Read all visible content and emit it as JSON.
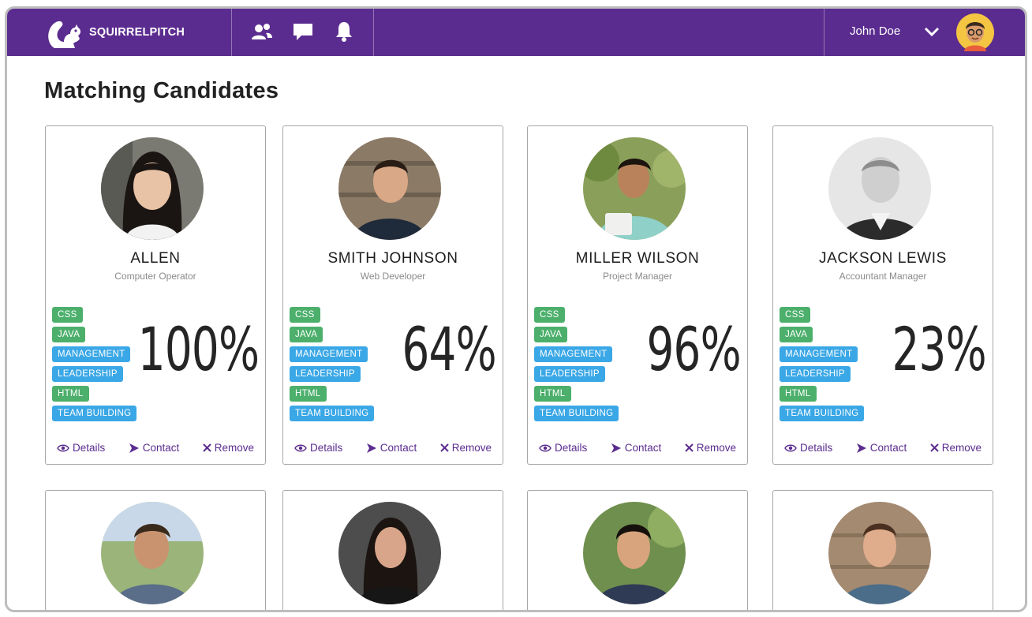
{
  "app": {
    "brand": "SQUIRRELPITCH"
  },
  "header": {
    "user_name": "John Doe"
  },
  "page": {
    "title": "Matching Candidates"
  },
  "actions": {
    "details": "Details",
    "contact": "Contact",
    "remove": "Remove"
  },
  "colors": {
    "brand": "#5b2c8f",
    "tag_green": "#4caf6b",
    "tag_blue": "#3aa7e6"
  },
  "candidates": [
    {
      "name": "ALLEN",
      "role": "Computer Operator",
      "match": "100%",
      "tags": [
        {
          "label": "CSS",
          "color": "green"
        },
        {
          "label": "JAVA",
          "color": "green"
        },
        {
          "label": "MANAGEMENT",
          "color": "blue"
        },
        {
          "label": "LEADERSHIP",
          "color": "blue"
        },
        {
          "label": "HTML",
          "color": "green"
        },
        {
          "label": "TEAM BUILDING",
          "color": "blue"
        }
      ]
    },
    {
      "name": "SMITH JOHNSON",
      "role": "Web Developer",
      "match": "64%",
      "tags": [
        {
          "label": "CSS",
          "color": "green"
        },
        {
          "label": "JAVA",
          "color": "green"
        },
        {
          "label": "MANAGEMENT",
          "color": "blue"
        },
        {
          "label": "LEADERSHIP",
          "color": "blue"
        },
        {
          "label": "HTML",
          "color": "green"
        },
        {
          "label": "TEAM BUILDING",
          "color": "blue"
        }
      ]
    },
    {
      "name": "MILLER WILSON",
      "role": "Project Manager",
      "match": "96%",
      "tags": [
        {
          "label": "CSS",
          "color": "green"
        },
        {
          "label": "JAVA",
          "color": "green"
        },
        {
          "label": "MANAGEMENT",
          "color": "blue"
        },
        {
          "label": "LEADERSHIP",
          "color": "blue"
        },
        {
          "label": "HTML",
          "color": "green"
        },
        {
          "label": "TEAM BUILDING",
          "color": "blue"
        }
      ]
    },
    {
      "name": "JACKSON LEWIS",
      "role": "Accountant Manager",
      "match": "23%",
      "tags": [
        {
          "label": "CSS",
          "color": "green"
        },
        {
          "label": "JAVA",
          "color": "green"
        },
        {
          "label": "MANAGEMENT",
          "color": "blue"
        },
        {
          "label": "LEADERSHIP",
          "color": "blue"
        },
        {
          "label": "HTML",
          "color": "green"
        },
        {
          "label": "TEAM BUILDING",
          "color": "blue"
        }
      ]
    }
  ]
}
